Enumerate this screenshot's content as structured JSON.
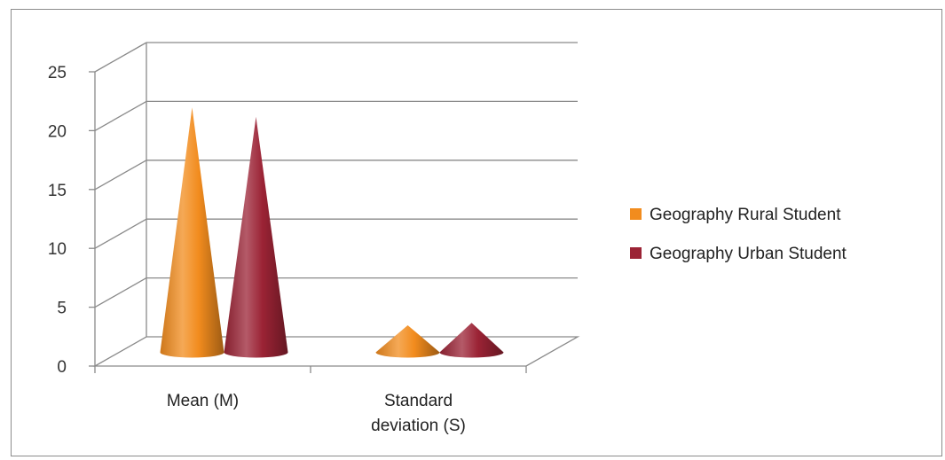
{
  "chart_data": {
    "type": "bar",
    "title": "",
    "xlabel": "",
    "ylabel": "",
    "categories": [
      "Mean (M)",
      "Standard deviation (S)"
    ],
    "category_lines": [
      [
        "Mean (M)"
      ],
      [
        "Standard",
        "deviation (S)"
      ]
    ],
    "series": [
      {
        "name": "Geography Rural Student",
        "values": [
          20.8,
          2.3
        ],
        "color": "#f28c1e"
      },
      {
        "name": "Geography Urban Student",
        "values": [
          20.0,
          2.5
        ],
        "color": "#9b2335"
      }
    ],
    "ylim": [
      0,
      25
    ],
    "yticks": [
      "0",
      "5",
      "10",
      "15",
      "20",
      "25"
    ],
    "grid": true,
    "legend": "right",
    "style": "3d-cone"
  }
}
